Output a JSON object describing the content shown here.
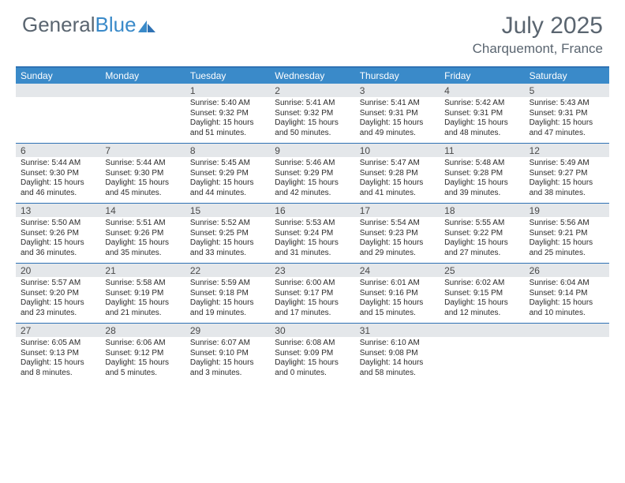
{
  "logo": {
    "word1": "General",
    "word2": "Blue"
  },
  "title": "July 2025",
  "location": "Charquemont, France",
  "colors": {
    "header_bar": "#3a8ac9",
    "rule": "#2f72b4",
    "daynum_band": "#e4e7ea",
    "text_muted": "#5a6570",
    "text_body": "#2b2b2b",
    "background": "#ffffff"
  },
  "days_of_week": [
    "Sunday",
    "Monday",
    "Tuesday",
    "Wednesday",
    "Thursday",
    "Friday",
    "Saturday"
  ],
  "weeks": [
    [
      null,
      null,
      {
        "n": "1",
        "sr": "Sunrise: 5:40 AM",
        "ss": "Sunset: 9:32 PM",
        "dl": "Daylight: 15 hours and 51 minutes."
      },
      {
        "n": "2",
        "sr": "Sunrise: 5:41 AM",
        "ss": "Sunset: 9:32 PM",
        "dl": "Daylight: 15 hours and 50 minutes."
      },
      {
        "n": "3",
        "sr": "Sunrise: 5:41 AM",
        "ss": "Sunset: 9:31 PM",
        "dl": "Daylight: 15 hours and 49 minutes."
      },
      {
        "n": "4",
        "sr": "Sunrise: 5:42 AM",
        "ss": "Sunset: 9:31 PM",
        "dl": "Daylight: 15 hours and 48 minutes."
      },
      {
        "n": "5",
        "sr": "Sunrise: 5:43 AM",
        "ss": "Sunset: 9:31 PM",
        "dl": "Daylight: 15 hours and 47 minutes."
      }
    ],
    [
      {
        "n": "6",
        "sr": "Sunrise: 5:44 AM",
        "ss": "Sunset: 9:30 PM",
        "dl": "Daylight: 15 hours and 46 minutes."
      },
      {
        "n": "7",
        "sr": "Sunrise: 5:44 AM",
        "ss": "Sunset: 9:30 PM",
        "dl": "Daylight: 15 hours and 45 minutes."
      },
      {
        "n": "8",
        "sr": "Sunrise: 5:45 AM",
        "ss": "Sunset: 9:29 PM",
        "dl": "Daylight: 15 hours and 44 minutes."
      },
      {
        "n": "9",
        "sr": "Sunrise: 5:46 AM",
        "ss": "Sunset: 9:29 PM",
        "dl": "Daylight: 15 hours and 42 minutes."
      },
      {
        "n": "10",
        "sr": "Sunrise: 5:47 AM",
        "ss": "Sunset: 9:28 PM",
        "dl": "Daylight: 15 hours and 41 minutes."
      },
      {
        "n": "11",
        "sr": "Sunrise: 5:48 AM",
        "ss": "Sunset: 9:28 PM",
        "dl": "Daylight: 15 hours and 39 minutes."
      },
      {
        "n": "12",
        "sr": "Sunrise: 5:49 AM",
        "ss": "Sunset: 9:27 PM",
        "dl": "Daylight: 15 hours and 38 minutes."
      }
    ],
    [
      {
        "n": "13",
        "sr": "Sunrise: 5:50 AM",
        "ss": "Sunset: 9:26 PM",
        "dl": "Daylight: 15 hours and 36 minutes."
      },
      {
        "n": "14",
        "sr": "Sunrise: 5:51 AM",
        "ss": "Sunset: 9:26 PM",
        "dl": "Daylight: 15 hours and 35 minutes."
      },
      {
        "n": "15",
        "sr": "Sunrise: 5:52 AM",
        "ss": "Sunset: 9:25 PM",
        "dl": "Daylight: 15 hours and 33 minutes."
      },
      {
        "n": "16",
        "sr": "Sunrise: 5:53 AM",
        "ss": "Sunset: 9:24 PM",
        "dl": "Daylight: 15 hours and 31 minutes."
      },
      {
        "n": "17",
        "sr": "Sunrise: 5:54 AM",
        "ss": "Sunset: 9:23 PM",
        "dl": "Daylight: 15 hours and 29 minutes."
      },
      {
        "n": "18",
        "sr": "Sunrise: 5:55 AM",
        "ss": "Sunset: 9:22 PM",
        "dl": "Daylight: 15 hours and 27 minutes."
      },
      {
        "n": "19",
        "sr": "Sunrise: 5:56 AM",
        "ss": "Sunset: 9:21 PM",
        "dl": "Daylight: 15 hours and 25 minutes."
      }
    ],
    [
      {
        "n": "20",
        "sr": "Sunrise: 5:57 AM",
        "ss": "Sunset: 9:20 PM",
        "dl": "Daylight: 15 hours and 23 minutes."
      },
      {
        "n": "21",
        "sr": "Sunrise: 5:58 AM",
        "ss": "Sunset: 9:19 PM",
        "dl": "Daylight: 15 hours and 21 minutes."
      },
      {
        "n": "22",
        "sr": "Sunrise: 5:59 AM",
        "ss": "Sunset: 9:18 PM",
        "dl": "Daylight: 15 hours and 19 minutes."
      },
      {
        "n": "23",
        "sr": "Sunrise: 6:00 AM",
        "ss": "Sunset: 9:17 PM",
        "dl": "Daylight: 15 hours and 17 minutes."
      },
      {
        "n": "24",
        "sr": "Sunrise: 6:01 AM",
        "ss": "Sunset: 9:16 PM",
        "dl": "Daylight: 15 hours and 15 minutes."
      },
      {
        "n": "25",
        "sr": "Sunrise: 6:02 AM",
        "ss": "Sunset: 9:15 PM",
        "dl": "Daylight: 15 hours and 12 minutes."
      },
      {
        "n": "26",
        "sr": "Sunrise: 6:04 AM",
        "ss": "Sunset: 9:14 PM",
        "dl": "Daylight: 15 hours and 10 minutes."
      }
    ],
    [
      {
        "n": "27",
        "sr": "Sunrise: 6:05 AM",
        "ss": "Sunset: 9:13 PM",
        "dl": "Daylight: 15 hours and 8 minutes."
      },
      {
        "n": "28",
        "sr": "Sunrise: 6:06 AM",
        "ss": "Sunset: 9:12 PM",
        "dl": "Daylight: 15 hours and 5 minutes."
      },
      {
        "n": "29",
        "sr": "Sunrise: 6:07 AM",
        "ss": "Sunset: 9:10 PM",
        "dl": "Daylight: 15 hours and 3 minutes."
      },
      {
        "n": "30",
        "sr": "Sunrise: 6:08 AM",
        "ss": "Sunset: 9:09 PM",
        "dl": "Daylight: 15 hours and 0 minutes."
      },
      {
        "n": "31",
        "sr": "Sunrise: 6:10 AM",
        "ss": "Sunset: 9:08 PM",
        "dl": "Daylight: 14 hours and 58 minutes."
      },
      null,
      null
    ]
  ]
}
